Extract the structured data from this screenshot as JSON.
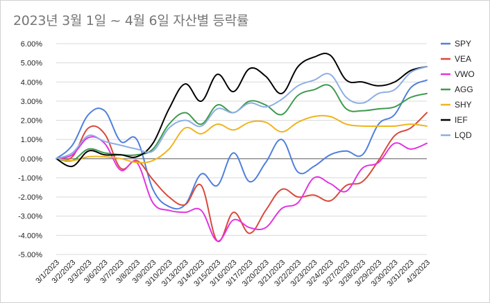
{
  "chart_data": {
    "type": "line",
    "title": "2023년 3월 1일 ~ 4월 6일 자산별 등락률",
    "xlabel": "",
    "ylabel": "",
    "ylim": [
      -5.0,
      6.0
    ],
    "y_ticks": [
      "6.00%",
      "5.00%",
      "4.00%",
      "3.00%",
      "2.00%",
      "1.00%",
      "0.00%",
      "-1.00%",
      "-2.00%",
      "-3.00%",
      "-4.00%",
      "-5.00%"
    ],
    "grid": true,
    "legend_position": "right",
    "categories": [
      "3/1/2023",
      "3/2/2023",
      "3/3/2023",
      "3/6/2023",
      "3/7/2023",
      "3/8/2023",
      "3/9/2023",
      "3/10/2023",
      "3/13/2023",
      "3/14/2023",
      "3/15/2023",
      "3/16/2023",
      "3/17/2023",
      "3/20/2023",
      "3/21/2023",
      "3/22/2023",
      "3/23/2023",
      "3/24/2023",
      "3/27/2023",
      "3/28/2023",
      "3/29/2023",
      "3/30/2023",
      "3/31/2023",
      "4/3/2023"
    ],
    "series": [
      {
        "name": "SPY",
        "color": "#4f7fdc",
        "values": [
          0.0,
          0.7,
          2.3,
          2.5,
          0.9,
          1.0,
          -1.6,
          -2.5,
          -2.4,
          -0.8,
          -1.4,
          0.3,
          -1.2,
          -0.2,
          1.0,
          -0.7,
          -0.4,
          0.2,
          0.4,
          0.2,
          1.8,
          2.3,
          3.7,
          4.1
        ]
      },
      {
        "name": "VEA",
        "color": "#d9493a",
        "values": [
          0.0,
          0.1,
          1.6,
          1.3,
          -0.5,
          -0.1,
          -1.1,
          -2.0,
          -2.4,
          -1.4,
          -4.3,
          -2.8,
          -3.9,
          -2.7,
          -1.6,
          -2.0,
          -1.9,
          -2.2,
          -1.4,
          -1.2,
          -0.1,
          1.2,
          1.6,
          2.4
        ]
      },
      {
        "name": "VWO",
        "color": "#e333e3",
        "values": [
          0.0,
          0.2,
          1.1,
          0.8,
          -0.6,
          -0.2,
          -2.3,
          -2.7,
          -2.8,
          -2.7,
          -4.3,
          -3.2,
          -3.6,
          -3.6,
          -2.6,
          -2.3,
          -1.0,
          -1.3,
          -1.7,
          -0.5,
          -0.2,
          0.8,
          0.5,
          0.8
        ]
      },
      {
        "name": "AGG",
        "color": "#3d9a4e",
        "values": [
          0.0,
          -0.1,
          0.5,
          0.3,
          0.2,
          0.2,
          0.5,
          1.8,
          2.4,
          1.8,
          2.8,
          2.4,
          3.0,
          2.8,
          2.3,
          3.3,
          3.6,
          3.8,
          2.6,
          2.5,
          2.6,
          2.7,
          3.2,
          3.4
        ]
      },
      {
        "name": "SHY",
        "color": "#f0b41c",
        "values": [
          0.0,
          -0.1,
          0.1,
          0.1,
          0.0,
          -0.2,
          -0.1,
          0.5,
          1.6,
          1.3,
          1.8,
          1.5,
          1.9,
          1.9,
          1.4,
          1.9,
          2.2,
          2.2,
          1.8,
          1.7,
          1.7,
          1.7,
          1.8,
          1.7
        ]
      },
      {
        "name": "IEF",
        "color": "#000000",
        "values": [
          0.0,
          -0.4,
          0.4,
          0.2,
          0.2,
          0.1,
          0.8,
          2.6,
          3.9,
          3.0,
          4.4,
          3.5,
          4.7,
          4.3,
          3.4,
          4.8,
          5.3,
          5.4,
          4.1,
          4.0,
          3.8,
          4.0,
          4.6,
          4.8
        ]
      },
      {
        "name": "LQD",
        "color": "#8caee4",
        "values": [
          0.0,
          0.3,
          1.2,
          0.9,
          0.7,
          0.5,
          0.4,
          1.6,
          2.0,
          1.7,
          2.6,
          2.4,
          2.9,
          2.7,
          3.1,
          3.8,
          4.1,
          4.4,
          3.2,
          2.9,
          3.4,
          3.6,
          4.5,
          4.8
        ]
      }
    ]
  }
}
